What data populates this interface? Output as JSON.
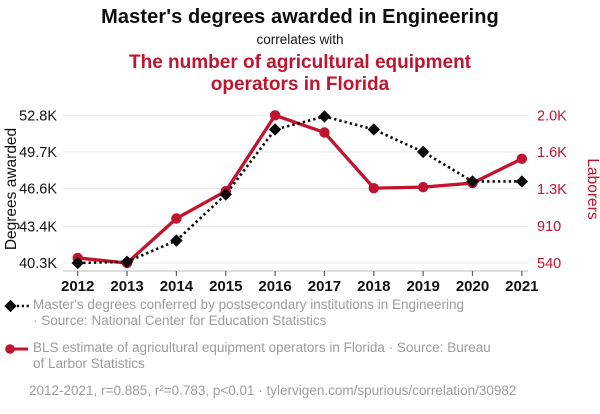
{
  "colors": {
    "accent_red": "#c0142f",
    "series_black": "#0a0a0a",
    "legend_gray": "#9c9c9c"
  },
  "header": {
    "title": "Master's degrees awarded in Engineering",
    "connector": "correlates with",
    "subtitle": "The number of agricultural equipment operators in Florida"
  },
  "chart_data": {
    "type": "line",
    "x": [
      2012,
      2013,
      2014,
      2015,
      2016,
      2017,
      2018,
      2019,
      2020,
      2021
    ],
    "series": [
      {
        "name": "Master's degrees conferred by postsecondary institutions in Engineering",
        "axis": "left",
        "color": "#0a0a0a",
        "line_style": "dotted",
        "marker": "diamond",
        "values": [
          40300,
          40400,
          42200,
          46100,
          51600,
          52700,
          51600,
          49700,
          47200,
          47200
        ]
      },
      {
        "name": "BLS estimate of agricultural equipment operators in Florida",
        "axis": "right",
        "color": "#c0142f",
        "line_style": "solid",
        "marker": "circle",
        "values": [
          590,
          540,
          980,
          1250,
          2000,
          1830,
          1280,
          1290,
          1330,
          1570
        ]
      }
    ],
    "left_axis": {
      "label": "Degrees awarded",
      "range": [
        40300,
        52800
      ],
      "tick_values": [
        52800,
        49700,
        46600,
        43400,
        40300
      ],
      "tick_labels": [
        "52.8K",
        "49.7K",
        "46.6K",
        "43.4K",
        "40.3K"
      ]
    },
    "right_axis": {
      "label": "Laborers",
      "range": [
        540,
        2000
      ],
      "tick_values": [
        2000,
        1635,
        1270,
        905,
        540
      ],
      "tick_labels": [
        "2.0K",
        "1.6K",
        "1.3K",
        "910",
        "540"
      ]
    },
    "grid": true,
    "legend_position": "bottom"
  },
  "legend": [
    {
      "marker": "black-diamond-dotted-line",
      "lines": [
        "Master's degrees conferred by postsecondary institutions in Engineering",
        "· Source: National Center for Education Statistics"
      ]
    },
    {
      "marker": "red-circle-solid-line",
      "lines": [
        "BLS estimate of agricultural equipment operators in Florida · Source: Bureau",
        "of Larbor Statistics"
      ]
    }
  ],
  "footer": {
    "text": "2012-2021, r=0.885, r²=0.783, p<0.01 · tylervigen.com/spurious/correlation/30982"
  }
}
